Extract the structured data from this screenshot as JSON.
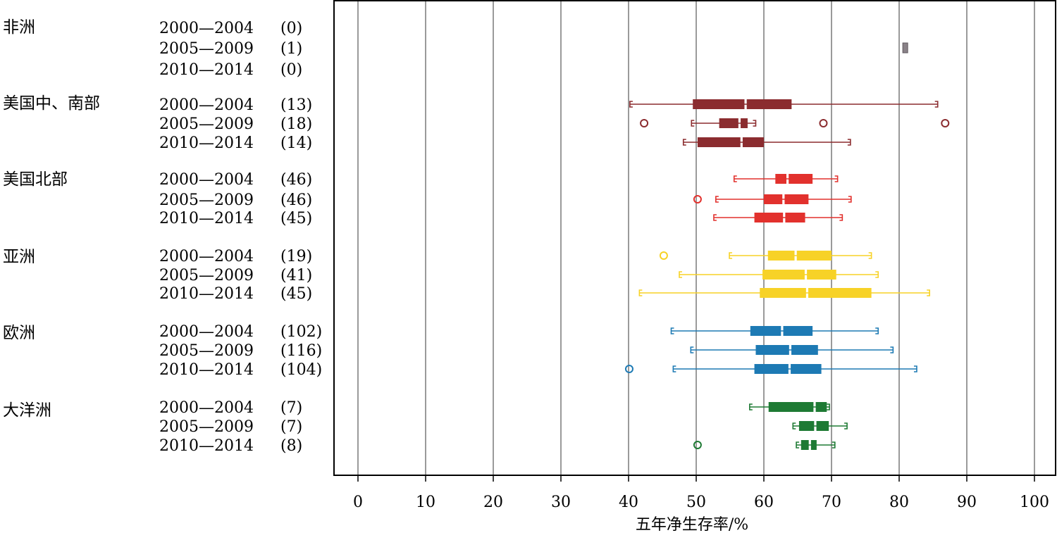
{
  "chart_data": {
    "type": "boxplot",
    "xlabel": "五年净生存率/%",
    "xlim": [
      0,
      100
    ],
    "xticks": [
      0,
      10,
      20,
      30,
      40,
      50,
      60,
      70,
      80,
      90,
      100
    ],
    "grid": "vertical",
    "groups": [
      {
        "name": "非洲",
        "color": "#8a8288",
        "periods": [
          {
            "period": "2000—2004",
            "n": "(0)",
            "box": null
          },
          {
            "period": "2005—2009",
            "n": "(1)",
            "box": {
              "low": 80.9,
              "q1": 80.9,
              "median": 80.9,
              "q3": 80.9,
              "high": 80.9,
              "outliers": []
            }
          },
          {
            "period": "2010—2014",
            "n": "(0)",
            "box": null
          }
        ]
      },
      {
        "name": "美国中、南部",
        "color": "#8b2c2f",
        "periods": [
          {
            "period": "2000—2004",
            "n": "(13)",
            "box": {
              "low": 40.2,
              "q1": 49.5,
              "median": 57.3,
              "q3": 64.1,
              "high": 85.7,
              "outliers": []
            }
          },
          {
            "period": "2005—2009",
            "n": "(18)",
            "box": {
              "low": 49.3,
              "q1": 53.4,
              "median": 56.4,
              "q3": 57.6,
              "high": 58.8,
              "outliers": [
                42.3,
                68.8,
                86.8
              ]
            }
          },
          {
            "period": "2010—2014",
            "n": "(14)",
            "box": {
              "low": 48.1,
              "q1": 50.2,
              "median": 56.7,
              "q3": 60.0,
              "high": 72.8,
              "outliers": []
            }
          }
        ]
      },
      {
        "name": "美国北部",
        "color": "#e2312d",
        "periods": [
          {
            "period": "2000—2004",
            "n": "(46)",
            "box": {
              "low": 55.6,
              "q1": 61.7,
              "median": 63.5,
              "q3": 67.2,
              "high": 70.9,
              "outliers": []
            }
          },
          {
            "period": "2005—2009",
            "n": "(46)",
            "box": {
              "low": 52.9,
              "q1": 60.0,
              "median": 62.9,
              "q3": 66.6,
              "high": 72.9,
              "outliers": [
                50.2
              ]
            }
          },
          {
            "period": "2010—2014",
            "n": "(45)",
            "box": {
              "low": 52.6,
              "q1": 58.6,
              "median": 63.0,
              "q3": 66.1,
              "high": 71.6,
              "outliers": []
            }
          }
        ]
      },
      {
        "name": "亚洲",
        "color": "#f7d227",
        "periods": [
          {
            "period": "2000—2004",
            "n": "(19)",
            "box": {
              "low": 54.9,
              "q1": 60.6,
              "median": 64.7,
              "q3": 70.0,
              "high": 75.9,
              "outliers": [
                45.2
              ]
            }
          },
          {
            "period": "2005—2009",
            "n": "(41)",
            "box": {
              "low": 47.5,
              "q1": 59.8,
              "median": 66.2,
              "q3": 70.7,
              "high": 76.9,
              "outliers": []
            }
          },
          {
            "period": "2010—2014",
            "n": "(45)",
            "box": {
              "low": 41.6,
              "q1": 59.4,
              "median": 66.4,
              "q3": 75.9,
              "high": 84.5,
              "outliers": []
            }
          }
        ]
      },
      {
        "name": "欧洲",
        "color": "#1d7ab4",
        "periods": [
          {
            "period": "2000—2004",
            "n": "(102)",
            "box": {
              "low": 46.3,
              "q1": 58.0,
              "median": 62.7,
              "q3": 67.2,
              "high": 76.9,
              "outliers": []
            }
          },
          {
            "period": "2005—2009",
            "n": "(116)",
            "box": {
              "low": 49.2,
              "q1": 58.8,
              "median": 63.9,
              "q3": 68.0,
              "high": 79.1,
              "outliers": []
            }
          },
          {
            "period": "2010—2014",
            "n": "(104)",
            "box": {
              "low": 46.6,
              "q1": 58.6,
              "median": 63.8,
              "q3": 68.5,
              "high": 82.6,
              "outliers": [
                40.1
              ]
            }
          }
        ]
      },
      {
        "name": "大洋洲",
        "color": "#1e7a34",
        "periods": [
          {
            "period": "2000—2004",
            "n": "(7)",
            "box": {
              "low": 57.9,
              "q1": 60.7,
              "median": 67.5,
              "q3": 69.3,
              "high": 69.7,
              "outliers": []
            }
          },
          {
            "period": "2005—2009",
            "n": "(7)",
            "box": {
              "low": 64.3,
              "q1": 65.2,
              "median": 67.6,
              "q3": 69.6,
              "high": 72.3,
              "outliers": []
            }
          },
          {
            "period": "2010—2014",
            "n": "(8)",
            "box": {
              "low": 64.8,
              "q1": 65.5,
              "median": 66.8,
              "q3": 67.8,
              "high": 70.5,
              "outliers": [
                50.2
              ]
            }
          }
        ]
      }
    ]
  }
}
